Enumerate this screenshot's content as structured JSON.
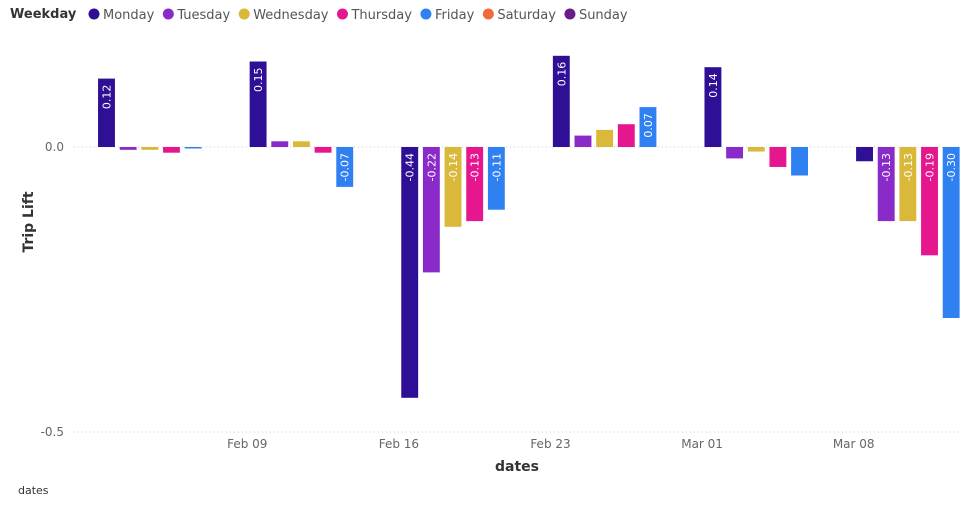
{
  "chart_data": {
    "type": "bar",
    "legend_title": "Weekday",
    "legend_position": "top-left",
    "xlabel": "dates",
    "ylabel": "Trip Lift",
    "footer": "dates",
    "ylim": [
      -0.5,
      0.2
    ],
    "y_ticks": [
      {
        "value": 0.0,
        "label": "0.0"
      },
      {
        "value": -0.5,
        "label": "-0.5"
      }
    ],
    "x_ticks": [
      "Feb 09",
      "Feb 16",
      "Feb 23",
      "Mar 01",
      "Mar 08"
    ],
    "x_tick_positions": [
      6.5,
      13.5,
      20.5,
      27.5,
      34.5
    ],
    "x_range": [
      -1,
      39
    ],
    "series": [
      {
        "name": "Monday",
        "color": "#2E0F96"
      },
      {
        "name": "Tuesday",
        "color": "#8A2BC9"
      },
      {
        "name": "Wednesday",
        "color": "#D9B83A"
      },
      {
        "name": "Thursday",
        "color": "#E6168F"
      },
      {
        "name": "Friday",
        "color": "#2F80F0"
      },
      {
        "name": "Saturday",
        "color": "#F06A3C"
      },
      {
        "name": "Sunday",
        "color": "#6A1A8A"
      }
    ],
    "bars": [
      {
        "day": 0,
        "weekday": 0,
        "value": 0.12,
        "label": "0.12"
      },
      {
        "day": 1,
        "weekday": 1,
        "value": -0.005
      },
      {
        "day": 2,
        "weekday": 2,
        "value": -0.005
      },
      {
        "day": 3,
        "weekday": 3,
        "value": -0.01
      },
      {
        "day": 4,
        "weekday": 4,
        "value": -0.002
      },
      {
        "day": 7,
        "weekday": 0,
        "value": 0.15,
        "label": "0.15"
      },
      {
        "day": 8,
        "weekday": 1,
        "value": 0.01
      },
      {
        "day": 9,
        "weekday": 2,
        "value": 0.01
      },
      {
        "day": 10,
        "weekday": 3,
        "value": -0.01
      },
      {
        "day": 11,
        "weekday": 4,
        "value": -0.07,
        "label": "-0.07"
      },
      {
        "day": 14,
        "weekday": 0,
        "value": -0.44,
        "label": "-0.44"
      },
      {
        "day": 15,
        "weekday": 1,
        "value": -0.22,
        "label": "-0.22"
      },
      {
        "day": 16,
        "weekday": 2,
        "value": -0.14,
        "label": "-0.14"
      },
      {
        "day": 17,
        "weekday": 3,
        "value": -0.13,
        "label": "-0.13"
      },
      {
        "day": 18,
        "weekday": 4,
        "value": -0.11,
        "label": "-0.11"
      },
      {
        "day": 21,
        "weekday": 0,
        "value": 0.16,
        "label": "0.16"
      },
      {
        "day": 22,
        "weekday": 1,
        "value": 0.02
      },
      {
        "day": 23,
        "weekday": 2,
        "value": 0.03
      },
      {
        "day": 24,
        "weekday": 3,
        "value": 0.04
      },
      {
        "day": 25,
        "weekday": 4,
        "value": 0.07,
        "label": "0.07"
      },
      {
        "day": 28,
        "weekday": 0,
        "value": 0.14,
        "label": "0.14"
      },
      {
        "day": 29,
        "weekday": 1,
        "value": -0.02
      },
      {
        "day": 30,
        "weekday": 2,
        "value": -0.008
      },
      {
        "day": 31,
        "weekday": 3,
        "value": -0.035
      },
      {
        "day": 32,
        "weekday": 4,
        "value": -0.05
      },
      {
        "day": 35,
        "weekday": 0,
        "value": -0.025
      },
      {
        "day": 36,
        "weekday": 1,
        "value": -0.13,
        "label": "-0.13"
      },
      {
        "day": 37,
        "weekday": 2,
        "value": -0.13,
        "label": "-0.13"
      },
      {
        "day": 38,
        "weekday": 3,
        "value": -0.19,
        "label": "-0.19"
      },
      {
        "day": 39,
        "weekday": 4,
        "value": -0.3,
        "label": "-0.30"
      }
    ]
  }
}
